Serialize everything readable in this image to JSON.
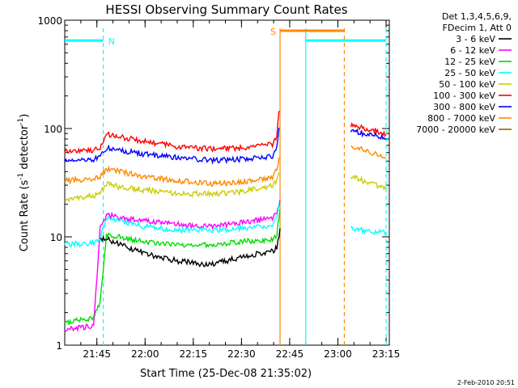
{
  "chart_data": {
    "type": "line",
    "title": "HESSI Observing Summary Count Rates",
    "xlabel": "Start Time (25-Dec-08 21:35:02)",
    "ylabel": "Count Rate (s",
    "ylabel_sup": "-1",
    "ylabel_tail": " detector",
    "ylabel_sup2": "-1",
    "ylabel_close": ")",
    "y_scale": "log",
    "ylim": [
      1,
      1000
    ],
    "xlim": [
      "21:35",
      "23:16"
    ],
    "x_ticks": [
      "21:45",
      "22:00",
      "22:15",
      "22:30",
      "22:45",
      "23:00",
      "23:15"
    ],
    "y_ticks": [
      "1",
      "10",
      "100",
      "1000"
    ],
    "footer_date": "2-Feb-2010 20:51",
    "legend": {
      "placement": "right",
      "header_lines": [
        "Det 1,3,4,5,6,9,",
        "FDecim 1, Att 0"
      ],
      "entries": [
        {
          "label": "3 - 6 keV",
          "color": "#000000"
        },
        {
          "label": "6 - 12 keV",
          "color": "#ff00ff"
        },
        {
          "label": "12 - 25 keV",
          "color": "#00dd00"
        },
        {
          "label": "25 - 50 keV",
          "color": "#00ffff"
        },
        {
          "label": "50 - 100 keV",
          "color": "#cccc00"
        },
        {
          "label": "100 - 300 keV",
          "color": "#ff0000"
        },
        {
          "label": "300 - 800 keV",
          "color": "#0000ff"
        },
        {
          "label": "800 - 7000 keV",
          "color": "#ff8800"
        },
        {
          "label": "7000 - 20000 keV",
          "color": "#996600"
        }
      ]
    },
    "flags": [
      {
        "label": "N",
        "color": "#00ffff",
        "start": "21:35",
        "end": "21:47",
        "level": 650
      },
      {
        "label": "S",
        "color": "#ff8800",
        "start": "22:42",
        "end": "23:02",
        "level": 800
      },
      {
        "label": "",
        "color": "#00ffff",
        "start": "22:50",
        "end": "23:15",
        "level": 650
      }
    ],
    "vlines": [
      {
        "time": "21:47",
        "color": "#00ffff",
        "style": "dashed"
      },
      {
        "time": "22:42",
        "color": "#ff8800",
        "style": "solid"
      },
      {
        "time": "22:50",
        "color": "#00ffff",
        "style": "solid"
      },
      {
        "time": "23:02",
        "color": "#ff8800",
        "style": "dashed"
      },
      {
        "time": "23:15",
        "color": "#00ffff",
        "style": "dashed"
      }
    ],
    "series": [
      {
        "name": "100 - 300 keV",
        "color": "#ff0000",
        "x": [
          "21:35",
          "21:44",
          "21:46",
          "21:48",
          "21:52",
          "22:00",
          "22:10",
          "22:20",
          "22:30",
          "22:40",
          "22:41",
          "22:42",
          "23:04",
          "23:08",
          "23:12",
          "23:15"
        ],
        "values": [
          62,
          63,
          65,
          88,
          84,
          76,
          68,
          65,
          66,
          72,
          85,
          200,
          108,
          100,
          95,
          88
        ]
      },
      {
        "name": "300 - 800 keV",
        "color": "#0000ff",
        "x": [
          "21:35",
          "21:44",
          "21:46",
          "21:48",
          "21:52",
          "22:00",
          "22:10",
          "22:20",
          "22:30",
          "22:40",
          "22:41",
          "22:42",
          "23:04",
          "23:08",
          "23:12",
          "23:15"
        ],
        "values": [
          51,
          52,
          54,
          66,
          63,
          58,
          54,
          51,
          52,
          56,
          65,
          130,
          96,
          90,
          86,
          80
        ]
      },
      {
        "name": "800 - 7000 keV",
        "color": "#ff8800",
        "x": [
          "21:35",
          "21:44",
          "21:46",
          "21:48",
          "21:52",
          "22:00",
          "22:10",
          "22:20",
          "22:30",
          "22:40",
          "22:41",
          "22:42",
          "23:04",
          "23:08",
          "23:12",
          "23:15"
        ],
        "values": [
          33,
          34,
          36,
          42,
          40,
          36,
          33,
          31,
          32,
          36,
          42,
          60,
          70,
          63,
          58,
          53
        ]
      },
      {
        "name": "50 - 100 keV",
        "color": "#cccc00",
        "x": [
          "21:35",
          "21:44",
          "21:46",
          "21:48",
          "21:52",
          "22:00",
          "22:10",
          "22:20",
          "22:30",
          "22:40",
          "22:41",
          "22:42",
          "23:04",
          "23:08",
          "23:12",
          "23:15"
        ],
        "values": [
          22,
          24,
          25,
          31,
          29,
          27,
          25,
          25,
          26,
          30,
          33,
          40,
          36,
          33,
          30,
          28
        ]
      },
      {
        "name": "6 - 12 keV",
        "color": "#ff00ff",
        "x": [
          "21:35",
          "21:44",
          "21:46",
          "21:48",
          "21:52",
          "22:00",
          "22:10",
          "22:20",
          "22:30",
          "22:40",
          "22:41",
          "22:42"
        ],
        "values": [
          1.4,
          1.5,
          12,
          16,
          15,
          14,
          13,
          12.5,
          13.5,
          15,
          17,
          22
        ]
      },
      {
        "name": "25 - 50 keV",
        "color": "#00ffff",
        "x": [
          "21:35",
          "21:44",
          "21:46",
          "21:48",
          "21:52",
          "22:00",
          "22:10",
          "22:20",
          "22:30",
          "22:40",
          "22:41",
          "22:42",
          "23:04",
          "23:08",
          "23:12",
          "23:15"
        ],
        "values": [
          8.5,
          8.7,
          9.5,
          15,
          14,
          12.5,
          11.5,
          11.5,
          12,
          13,
          15,
          25,
          12,
          11.5,
          11,
          11
        ]
      },
      {
        "name": "12 - 25 keV",
        "color": "#00dd00",
        "x": [
          "21:35",
          "21:44",
          "21:46",
          "21:48",
          "21:52",
          "22:00",
          "22:10",
          "22:20",
          "22:30",
          "22:40",
          "22:41",
          "22:42"
        ],
        "values": [
          1.6,
          1.8,
          2.5,
          10.5,
          10,
          9,
          8.5,
          8.5,
          9,
          9.5,
          10.5,
          18
        ]
      },
      {
        "name": "3 - 6 keV",
        "color": "#000000",
        "x": [
          "21:46",
          "21:48",
          "21:52",
          "22:00",
          "22:10",
          "22:20",
          "22:30",
          "22:40",
          "22:41",
          "22:42"
        ],
        "values": [
          9.5,
          9.5,
          8.5,
          7,
          6,
          5.5,
          6.5,
          7.5,
          8,
          12
        ]
      }
    ]
  }
}
